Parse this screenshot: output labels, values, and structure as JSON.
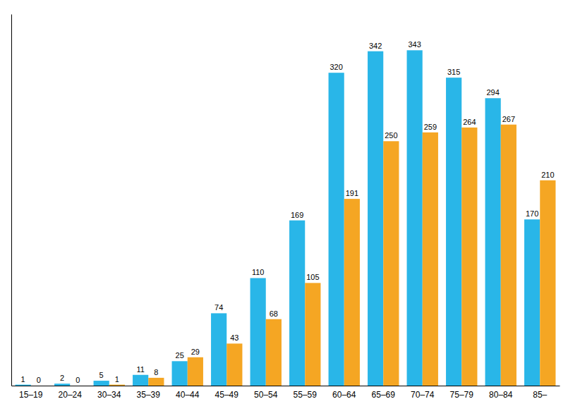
{
  "chart_data": {
    "type": "bar",
    "categories": [
      "15–19",
      "20–24",
      "30–34",
      "35–39",
      "40–44",
      "45–49",
      "50–54",
      "55–59",
      "60–64",
      "65–69",
      "70–74",
      "75–79",
      "80–84",
      "85–"
    ],
    "series": [
      {
        "color": "#29B6E8",
        "values": [
          1,
          2,
          5,
          11,
          25,
          74,
          110,
          169,
          320,
          342,
          343,
          315,
          294,
          170
        ]
      },
      {
        "color": "#F5A623",
        "values": [
          0,
          0,
          1,
          8,
          29,
          43,
          68,
          105,
          191,
          250,
          259,
          264,
          267,
          210
        ]
      }
    ],
    "ylim": [
      0,
      380
    ],
    "grid": false,
    "data_labels": true,
    "tick_labels": "x"
  }
}
